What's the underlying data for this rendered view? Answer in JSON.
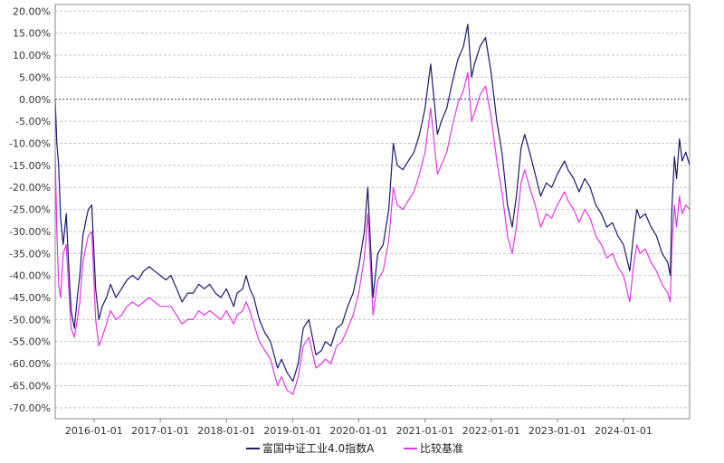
{
  "chart_data": {
    "type": "line",
    "title": "",
    "xlabel": "",
    "ylabel": "",
    "ylim": [
      -72.5,
      21.5
    ],
    "x_range": [
      "2015-06-01",
      "2024-12-31"
    ],
    "y_ticks": [
      20,
      15,
      10,
      5,
      0,
      -5,
      -10,
      -15,
      -20,
      -25,
      -30,
      -35,
      -40,
      -45,
      -50,
      -55,
      -60,
      -65,
      -70
    ],
    "y_tick_labels": [
      "20.00%",
      "15.00%",
      "10.00%",
      "5.00%",
      "0.00%",
      "-5.00%",
      "-10.00%",
      "-15.00%",
      "-20.00%",
      "-25.00%",
      "-30.00%",
      "-35.00%",
      "-40.00%",
      "-45.00%",
      "-50.00%",
      "-55.00%",
      "-60.00%",
      "-65.00%",
      "-70.00%"
    ],
    "x_ticks": [
      "2016-01-01",
      "2017-01-01",
      "2018-01-01",
      "2019-01-01",
      "2020-01-01",
      "2021-01-01",
      "2022-01-01",
      "2023-01-01",
      "2024-01-01"
    ],
    "grid": true,
    "legend_position": "bottom",
    "zero_line": true,
    "series": [
      {
        "name": "富国中证工业4.0指数A",
        "color": "#1a1a6e",
        "points": [
          [
            "2015-06-01",
            0
          ],
          [
            "2015-06-10",
            -10
          ],
          [
            "2015-06-20",
            -15
          ],
          [
            "2015-07-01",
            -27
          ],
          [
            "2015-07-15",
            -33
          ],
          [
            "2015-08-01",
            -26
          ],
          [
            "2015-08-15",
            -38
          ],
          [
            "2015-08-28",
            -48
          ],
          [
            "2015-09-15",
            -52
          ],
          [
            "2015-10-01",
            -45
          ],
          [
            "2015-10-15",
            -40
          ],
          [
            "2015-11-01",
            -31
          ],
          [
            "2015-11-20",
            -27
          ],
          [
            "2015-12-01",
            -25
          ],
          [
            "2015-12-20",
            -24
          ],
          [
            "2016-01-10",
            -43
          ],
          [
            "2016-01-28",
            -50
          ],
          [
            "2016-02-15",
            -47
          ],
          [
            "2016-03-10",
            -45
          ],
          [
            "2016-04-01",
            -42
          ],
          [
            "2016-05-01",
            -45
          ],
          [
            "2016-06-01",
            -43
          ],
          [
            "2016-07-01",
            -41
          ],
          [
            "2016-08-01",
            -40
          ],
          [
            "2016-09-01",
            -41
          ],
          [
            "2016-10-01",
            -39
          ],
          [
            "2016-11-01",
            -38
          ],
          [
            "2016-12-01",
            -39
          ],
          [
            "2017-01-01",
            -40
          ],
          [
            "2017-02-01",
            -41
          ],
          [
            "2017-03-01",
            -40
          ],
          [
            "2017-04-01",
            -43
          ],
          [
            "2017-05-01",
            -46
          ],
          [
            "2017-06-01",
            -44
          ],
          [
            "2017-07-01",
            -44
          ],
          [
            "2017-08-01",
            -42
          ],
          [
            "2017-09-01",
            -43
          ],
          [
            "2017-10-01",
            -42
          ],
          [
            "2017-11-01",
            -44
          ],
          [
            "2017-12-01",
            -45
          ],
          [
            "2018-01-01",
            -43
          ],
          [
            "2018-02-10",
            -47
          ],
          [
            "2018-03-01",
            -44
          ],
          [
            "2018-04-01",
            -43
          ],
          [
            "2018-04-20",
            -40
          ],
          [
            "2018-05-10",
            -43
          ],
          [
            "2018-06-01",
            -45
          ],
          [
            "2018-07-01",
            -50
          ],
          [
            "2018-08-01",
            -53
          ],
          [
            "2018-09-01",
            -55
          ],
          [
            "2018-10-10",
            -61
          ],
          [
            "2018-11-01",
            -59
          ],
          [
            "2018-12-01",
            -62
          ],
          [
            "2019-01-03",
            -64
          ],
          [
            "2019-02-01",
            -60
          ],
          [
            "2019-03-01",
            -52
          ],
          [
            "2019-04-01",
            -50
          ],
          [
            "2019-05-10",
            -58
          ],
          [
            "2019-06-10",
            -57
          ],
          [
            "2019-07-01",
            -55
          ],
          [
            "2019-08-01",
            -56
          ],
          [
            "2019-09-01",
            -52
          ],
          [
            "2019-10-01",
            -51
          ],
          [
            "2019-11-01",
            -47
          ],
          [
            "2019-12-01",
            -44
          ],
          [
            "2020-01-01",
            -38
          ],
          [
            "2020-02-01",
            -30
          ],
          [
            "2020-02-20",
            -20
          ],
          [
            "2020-03-20",
            -45
          ],
          [
            "2020-04-15",
            -35
          ],
          [
            "2020-05-15",
            -33
          ],
          [
            "2020-06-15",
            -25
          ],
          [
            "2020-07-10",
            -10
          ],
          [
            "2020-08-01",
            -15
          ],
          [
            "2020-09-01",
            -16
          ],
          [
            "2020-10-01",
            -14
          ],
          [
            "2020-11-01",
            -12
          ],
          [
            "2020-12-01",
            -8
          ],
          [
            "2021-01-01",
            -2
          ],
          [
            "2021-02-01",
            8
          ],
          [
            "2021-03-10",
            -8
          ],
          [
            "2021-04-01",
            -5
          ],
          [
            "2021-05-01",
            -2
          ],
          [
            "2021-06-01",
            4
          ],
          [
            "2021-07-01",
            9
          ],
          [
            "2021-08-01",
            12
          ],
          [
            "2021-08-25",
            17
          ],
          [
            "2021-09-15",
            5
          ],
          [
            "2021-10-01",
            8
          ],
          [
            "2021-11-01",
            12
          ],
          [
            "2021-12-01",
            14
          ],
          [
            "2022-01-01",
            6
          ],
          [
            "2022-02-01",
            -5
          ],
          [
            "2022-03-01",
            -12
          ],
          [
            "2022-04-01",
            -24
          ],
          [
            "2022-04-27",
            -29
          ],
          [
            "2022-05-20",
            -22
          ],
          [
            "2022-06-15",
            -11
          ],
          [
            "2022-07-05",
            -8
          ],
          [
            "2022-08-01",
            -12
          ],
          [
            "2022-09-01",
            -17
          ],
          [
            "2022-10-01",
            -22
          ],
          [
            "2022-11-01",
            -19
          ],
          [
            "2022-12-01",
            -20
          ],
          [
            "2023-01-01",
            -17
          ],
          [
            "2023-02-10",
            -14
          ],
          [
            "2023-03-01",
            -16
          ],
          [
            "2023-04-01",
            -18
          ],
          [
            "2023-05-01",
            -21
          ],
          [
            "2023-06-01",
            -18
          ],
          [
            "2023-07-01",
            -20
          ],
          [
            "2023-08-01",
            -24
          ],
          [
            "2023-09-01",
            -26
          ],
          [
            "2023-10-01",
            -29
          ],
          [
            "2023-11-01",
            -28
          ],
          [
            "2023-12-01",
            -31
          ],
          [
            "2024-01-01",
            -33
          ],
          [
            "2024-02-05",
            -39
          ],
          [
            "2024-02-25",
            -31
          ],
          [
            "2024-03-15",
            -25
          ],
          [
            "2024-04-01",
            -27
          ],
          [
            "2024-05-01",
            -26
          ],
          [
            "2024-06-01",
            -29
          ],
          [
            "2024-07-01",
            -31
          ],
          [
            "2024-08-01",
            -35
          ],
          [
            "2024-09-01",
            -37
          ],
          [
            "2024-09-15",
            -40
          ],
          [
            "2024-09-24",
            -25
          ],
          [
            "2024-10-08",
            -13
          ],
          [
            "2024-10-20",
            -18
          ],
          [
            "2024-11-05",
            -9
          ],
          [
            "2024-11-20",
            -14
          ],
          [
            "2024-12-10",
            -12
          ],
          [
            "2024-12-31",
            -15
          ]
        ]
      },
      {
        "name": "比较基准",
        "color": "#e236e8",
        "points": [
          [
            "2015-06-01",
            -12
          ],
          [
            "2015-06-10",
            -30
          ],
          [
            "2015-06-20",
            -42
          ],
          [
            "2015-07-01",
            -45
          ],
          [
            "2015-07-15",
            -35
          ],
          [
            "2015-08-01",
            -33
          ],
          [
            "2015-08-15",
            -43
          ],
          [
            "2015-08-28",
            -52
          ],
          [
            "2015-09-15",
            -54
          ],
          [
            "2015-10-01",
            -50
          ],
          [
            "2015-10-15",
            -46
          ],
          [
            "2015-11-01",
            -37
          ],
          [
            "2015-11-20",
            -33
          ],
          [
            "2015-12-01",
            -31
          ],
          [
            "2015-12-20",
            -30
          ],
          [
            "2016-01-10",
            -50
          ],
          [
            "2016-01-28",
            -56
          ],
          [
            "2016-02-15",
            -54
          ],
          [
            "2016-03-10",
            -51
          ],
          [
            "2016-04-01",
            -48
          ],
          [
            "2016-05-01",
            -50
          ],
          [
            "2016-06-01",
            -49
          ],
          [
            "2016-07-01",
            -47
          ],
          [
            "2016-08-01",
            -46
          ],
          [
            "2016-09-01",
            -47
          ],
          [
            "2016-10-01",
            -46
          ],
          [
            "2016-11-01",
            -45
          ],
          [
            "2016-12-01",
            -46
          ],
          [
            "2017-01-01",
            -47
          ],
          [
            "2017-02-01",
            -47
          ],
          [
            "2017-03-01",
            -47
          ],
          [
            "2017-04-01",
            -49
          ],
          [
            "2017-05-01",
            -51
          ],
          [
            "2017-06-01",
            -50
          ],
          [
            "2017-07-01",
            -50
          ],
          [
            "2017-08-01",
            -48
          ],
          [
            "2017-09-01",
            -49
          ],
          [
            "2017-10-01",
            -48
          ],
          [
            "2017-11-01",
            -49
          ],
          [
            "2017-12-01",
            -50
          ],
          [
            "2018-01-01",
            -48
          ],
          [
            "2018-02-10",
            -51
          ],
          [
            "2018-03-01",
            -49
          ],
          [
            "2018-04-01",
            -48
          ],
          [
            "2018-04-20",
            -46
          ],
          [
            "2018-05-10",
            -48
          ],
          [
            "2018-06-01",
            -51
          ],
          [
            "2018-07-01",
            -55
          ],
          [
            "2018-08-01",
            -57
          ],
          [
            "2018-09-01",
            -59
          ],
          [
            "2018-10-10",
            -65
          ],
          [
            "2018-11-01",
            -63
          ],
          [
            "2018-12-01",
            -66
          ],
          [
            "2019-01-03",
            -67
          ],
          [
            "2019-02-01",
            -63
          ],
          [
            "2019-03-01",
            -56
          ],
          [
            "2019-04-01",
            -54
          ],
          [
            "2019-05-10",
            -61
          ],
          [
            "2019-06-10",
            -60
          ],
          [
            "2019-07-01",
            -59
          ],
          [
            "2019-08-01",
            -60
          ],
          [
            "2019-09-01",
            -56
          ],
          [
            "2019-10-01",
            -55
          ],
          [
            "2019-11-01",
            -52
          ],
          [
            "2019-12-01",
            -49
          ],
          [
            "2020-01-01",
            -44
          ],
          [
            "2020-02-01",
            -36
          ],
          [
            "2020-02-20",
            -26
          ],
          [
            "2020-03-20",
            -49
          ],
          [
            "2020-04-15",
            -41
          ],
          [
            "2020-05-15",
            -39
          ],
          [
            "2020-06-15",
            -32
          ],
          [
            "2020-07-10",
            -20
          ],
          [
            "2020-08-01",
            -24
          ],
          [
            "2020-09-01",
            -25
          ],
          [
            "2020-10-01",
            -23
          ],
          [
            "2020-11-01",
            -21
          ],
          [
            "2020-12-01",
            -17
          ],
          [
            "2021-01-01",
            -12
          ],
          [
            "2021-02-01",
            -2
          ],
          [
            "2021-03-10",
            -17
          ],
          [
            "2021-04-01",
            -15
          ],
          [
            "2021-05-01",
            -12
          ],
          [
            "2021-06-01",
            -6
          ],
          [
            "2021-07-01",
            -1
          ],
          [
            "2021-08-01",
            2
          ],
          [
            "2021-08-25",
            6
          ],
          [
            "2021-09-15",
            -5
          ],
          [
            "2021-10-01",
            -3
          ],
          [
            "2021-11-01",
            1
          ],
          [
            "2021-12-01",
            3
          ],
          [
            "2022-01-01",
            -4
          ],
          [
            "2022-02-01",
            -14
          ],
          [
            "2022-03-01",
            -21
          ],
          [
            "2022-04-01",
            -31
          ],
          [
            "2022-04-27",
            -35
          ],
          [
            "2022-05-20",
            -29
          ],
          [
            "2022-06-15",
            -19
          ],
          [
            "2022-07-05",
            -16
          ],
          [
            "2022-08-01",
            -20
          ],
          [
            "2022-09-01",
            -24
          ],
          [
            "2022-10-01",
            -29
          ],
          [
            "2022-11-01",
            -26
          ],
          [
            "2022-12-01",
            -27
          ],
          [
            "2023-01-01",
            -24
          ],
          [
            "2023-02-10",
            -21
          ],
          [
            "2023-03-01",
            -23
          ],
          [
            "2023-04-01",
            -25
          ],
          [
            "2023-05-01",
            -28
          ],
          [
            "2023-06-01",
            -25
          ],
          [
            "2023-07-01",
            -27
          ],
          [
            "2023-08-01",
            -31
          ],
          [
            "2023-09-01",
            -33
          ],
          [
            "2023-10-01",
            -36
          ],
          [
            "2023-11-01",
            -35
          ],
          [
            "2023-12-01",
            -38
          ],
          [
            "2024-01-01",
            -40
          ],
          [
            "2024-02-05",
            -46
          ],
          [
            "2024-02-25",
            -38
          ],
          [
            "2024-03-15",
            -33
          ],
          [
            "2024-04-01",
            -35
          ],
          [
            "2024-05-01",
            -34
          ],
          [
            "2024-06-01",
            -37
          ],
          [
            "2024-07-01",
            -39
          ],
          [
            "2024-08-01",
            -42
          ],
          [
            "2024-09-01",
            -44
          ],
          [
            "2024-09-15",
            -46
          ],
          [
            "2024-09-24",
            -34
          ],
          [
            "2024-10-08",
            -24
          ],
          [
            "2024-10-20",
            -29
          ],
          [
            "2024-11-05",
            -22
          ],
          [
            "2024-11-20",
            -26
          ],
          [
            "2024-12-10",
            -24
          ],
          [
            "2024-12-31",
            -25
          ]
        ]
      }
    ]
  }
}
